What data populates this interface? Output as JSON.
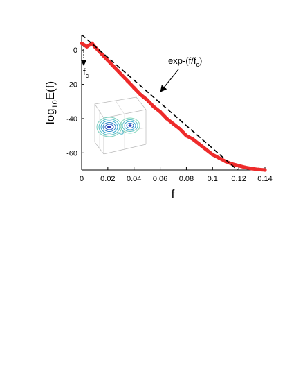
{
  "chart_data": {
    "type": "line",
    "xlabel": "f",
    "ylabel_main": "log",
    "ylabel_sub": "10",
    "ylabel_tail": "E(f)",
    "xlim": [
      0,
      0.14
    ],
    "ylim": [
      -70,
      9
    ],
    "x_ticks": [
      0,
      0.02,
      0.04,
      0.06,
      0.08,
      0.1,
      0.12,
      0.14
    ],
    "x_tick_labels": [
      "0",
      "0.02",
      "0.04",
      "0.06",
      "0.08",
      "0.1",
      "0.12",
      "0.14"
    ],
    "y_ticks": [
      0,
      -20,
      -40,
      -60
    ],
    "y_tick_labels": [
      "0",
      "-20",
      "-40",
      "-60"
    ],
    "grid": false,
    "series": [
      {
        "color": "#ee2b2b",
        "style": "solid-thick",
        "x": [
          0,
          0.002,
          0.004,
          0.006,
          0.008,
          0.01,
          0.015,
          0.02,
          0.025,
          0.03,
          0.035,
          0.04,
          0.045,
          0.05,
          0.055,
          0.06,
          0.065,
          0.07,
          0.075,
          0.08,
          0.085,
          0.09,
          0.095,
          0.1,
          0.105,
          0.11,
          0.115,
          0.12,
          0.125,
          0.13,
          0.135,
          0.14
        ],
        "y": [
          4,
          3,
          2,
          3,
          4,
          2,
          -2,
          -6,
          -10,
          -14,
          -18,
          -22,
          -26,
          -29,
          -33,
          -36,
          -40,
          -43,
          -46,
          -50,
          -52,
          -55,
          -58,
          -61,
          -63,
          -65,
          -66.5,
          -67.5,
          -68.5,
          -69.2,
          -69.7,
          -70
        ]
      },
      {
        "color": "#000000",
        "style": "dashed",
        "x": [
          0,
          0.119
        ],
        "y": [
          9,
          -70
        ]
      }
    ],
    "annotations": {
      "fit_label_main": "exp-(f/f",
      "fit_label_sub": "c",
      "fit_label_tail": ")",
      "fc_label_main": "f",
      "fc_label_sub": "c"
    }
  }
}
